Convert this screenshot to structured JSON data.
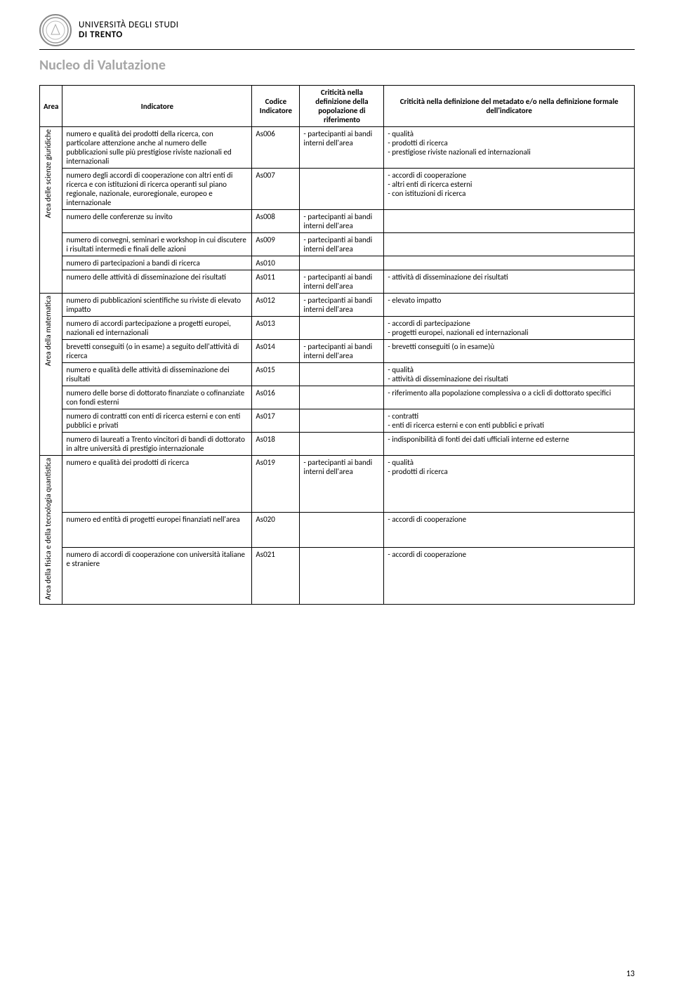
{
  "header": {
    "university_line1": "UNIVERSITÀ DEGLI STUDI",
    "university_line2": "DI TRENTO"
  },
  "title": "Nucleo di Valutazione",
  "columns": {
    "area": "Area",
    "indicatore": "Indicatore",
    "codice": "Codice Indicatore",
    "crit_pop": "Criticità nella definizione della popolazione di riferimento",
    "crit_meta": "Criticità nella definizione del metadato e/o nella definizione formale dell'indicatore"
  },
  "areas": {
    "giuridiche": "Area delle scienze giuridiche",
    "matematica": "Area della matematica",
    "fisica": "Area della fisica e della tecnologia quantistica"
  },
  "rows": {
    "r1": {
      "ind": "numero e qualità dei prodotti della ricerca, con particolare attenzione anche al numero delle pubblicazioni sulle più prestigiose riviste nazionali ed internazionali",
      "code": "As006",
      "pop": "- partecipanti ai bandi interni dell'area",
      "meta": "- qualità\n- prodotti di ricerca\n- prestigiose riviste nazionali ed internazionali"
    },
    "r2": {
      "ind": "numero degli accordi di cooperazione con altri enti di ricerca e con istituzioni di ricerca operanti sul piano regionale, nazionale, euroregionale, europeo e internazionale",
      "code": "As007",
      "pop": "",
      "meta": "- accordi di cooperazione\n- altri enti di ricerca esterni\n- con istituzioni di ricerca"
    },
    "r3": {
      "ind": "numero delle conferenze su invito",
      "code": "As008",
      "pop": "- partecipanti ai bandi interni dell'area",
      "meta": ""
    },
    "r4": {
      "ind": "numero di convegni, seminari e workshop in cui discutere i risultati intermedi e finali delle azioni",
      "code": "As009",
      "pop": "- partecipanti ai bandi interni dell'area",
      "meta": ""
    },
    "r5": {
      "ind": "numero di partecipazioni a bandi di ricerca",
      "code": "As010",
      "pop": "",
      "meta": ""
    },
    "r6": {
      "ind": "numero delle attività di disseminazione dei risultati",
      "code": "As011",
      "pop": "- partecipanti ai bandi interni dell'area",
      "meta": "- attività di disseminazione dei risultati"
    },
    "r7": {
      "ind": "numero di pubblicazioni scientifiche su riviste di elevato impatto",
      "code": "As012",
      "pop": "- partecipanti ai bandi interni dell'area",
      "meta": "- elevato impatto"
    },
    "r8": {
      "ind": "numero di accordi partecipazione a progetti europei, nazionali ed internazionali",
      "code": "As013",
      "pop": "",
      "meta": "- accordi di partecipazione\n- progetti europei, nazionali ed internazionali"
    },
    "r9": {
      "ind": "brevetti conseguiti (o in esame) a seguito dell'attività di ricerca",
      "code": "As014",
      "pop": "- partecipanti ai bandi interni dell'area",
      "meta": "- brevetti conseguiti (o in esame)ù"
    },
    "r10": {
      "ind": "numero e qualità delle attività di disseminazione dei risultati",
      "code": "As015",
      "pop": "",
      "meta": "- qualità\n- attività di disseminazione dei risultati"
    },
    "r11": {
      "ind": "numero delle borse di dottorato finanziate o cofinanziate con fondi esterni",
      "code": "As016",
      "pop": "",
      "meta": "- riferimento alla popolazione complessiva o a cicli di dottorato specifici"
    },
    "r12": {
      "ind": "numero di contratti con enti di ricerca esterni e con enti pubblici e privati",
      "code": "As017",
      "pop": "",
      "meta": "- contratti\n- enti di ricerca esterni e con enti pubblici e privati"
    },
    "r13": {
      "ind": "numero di laureati a Trento vincitori di bandi di dottorato in altre università di prestigio internazionale",
      "code": "As018",
      "pop": "",
      "meta": "- indisponibilità di fonti dei dati ufficiali interne ed esterne"
    },
    "r14": {
      "ind": "numero e qualità dei prodotti di ricerca",
      "code": "As019",
      "pop": "- partecipanti ai bandi interni dell'area",
      "meta": "- qualità\n- prodotti di ricerca"
    },
    "r15": {
      "ind": "numero ed entità di progetti europei finanziati nell'area",
      "code": "As020",
      "pop": "",
      "meta": "- accordi di cooperazione"
    },
    "r16": {
      "ind": "numero di accordi di cooperazione con università italiane e straniere",
      "code": "As021",
      "pop": "",
      "meta": "- accordi di cooperazione"
    }
  },
  "page_number": "13"
}
